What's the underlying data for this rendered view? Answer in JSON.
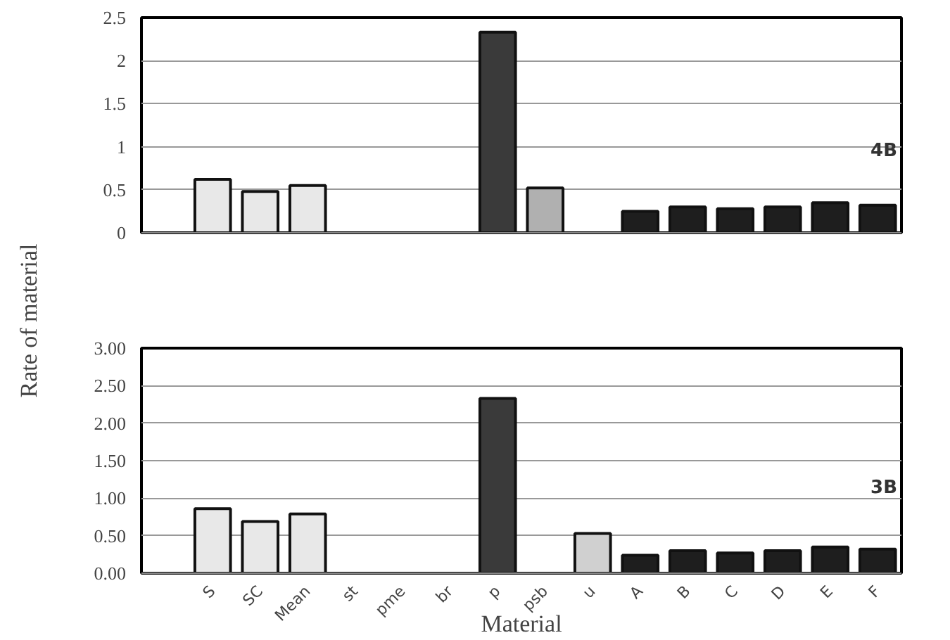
{
  "chart_data": [
    {
      "type": "bar",
      "categories": [
        null,
        null,
        null,
        null,
        null,
        null,
        null,
        null,
        null,
        null,
        null,
        null,
        null,
        null,
        null,
        null
      ],
      "values": [
        null,
        0.62,
        0.48,
        0.55,
        null,
        null,
        null,
        2.33,
        0.52,
        null,
        0.25,
        0.3,
        0.28,
        0.3,
        0.35,
        0.32
      ],
      "colors": [
        "#e8e8e8",
        "#e8e8e8",
        "#e8e8e8",
        "#e8e8e8",
        "#e8e8e8",
        "#e8e8e8",
        "#e8e8e8",
        "#3a3a3a",
        "#b0b0b0",
        "#d0d0d0",
        "#1e1e1e",
        "#1e1e1e",
        "#1e1e1e",
        "#1e1e1e",
        "#1e1e1e",
        "#1e1e1e"
      ],
      "ylim": [
        0,
        2.5
      ],
      "yticks": [
        0,
        0.5,
        1,
        1.5,
        2,
        2.5
      ],
      "grid": "y",
      "annotations": [
        "4B"
      ]
    },
    {
      "type": "bar",
      "categories": [
        null,
        "S",
        "SC",
        "Mean",
        "st",
        "pme",
        "br",
        "p",
        "psb",
        "u",
        "A",
        "B",
        "C",
        "D",
        "E",
        "F"
      ],
      "values": [
        null,
        0.86,
        0.69,
        0.79,
        null,
        null,
        null,
        2.33,
        null,
        0.53,
        0.24,
        0.3,
        0.27,
        0.3,
        0.35,
        0.32
      ],
      "colors": [
        "#e8e8e8",
        "#e8e8e8",
        "#e8e8e8",
        "#e8e8e8",
        "#e8e8e8",
        "#e8e8e8",
        "#e8e8e8",
        "#3a3a3a",
        "#b0b0b0",
        "#d0d0d0",
        "#1e1e1e",
        "#1e1e1e",
        "#1e1e1e",
        "#1e1e1e",
        "#1e1e1e",
        "#1e1e1e"
      ],
      "ylim": [
        0,
        3
      ],
      "yticks": [
        {
          "value": 0,
          "label": "0.00"
        },
        {
          "value": 0.5,
          "label": "0.50"
        },
        {
          "value": 1,
          "label": "1.00"
        },
        {
          "value": 1.5,
          "label": "1.50"
        },
        {
          "value": 2,
          "label": "2.00"
        },
        {
          "value": 2.5,
          "label": "2.50"
        },
        {
          "value": 3,
          "label": "3.00"
        }
      ],
      "grid": "y",
      "xlabel": "Material",
      "ylabel": "Rate of material",
      "annotations": [
        "3B"
      ]
    }
  ]
}
